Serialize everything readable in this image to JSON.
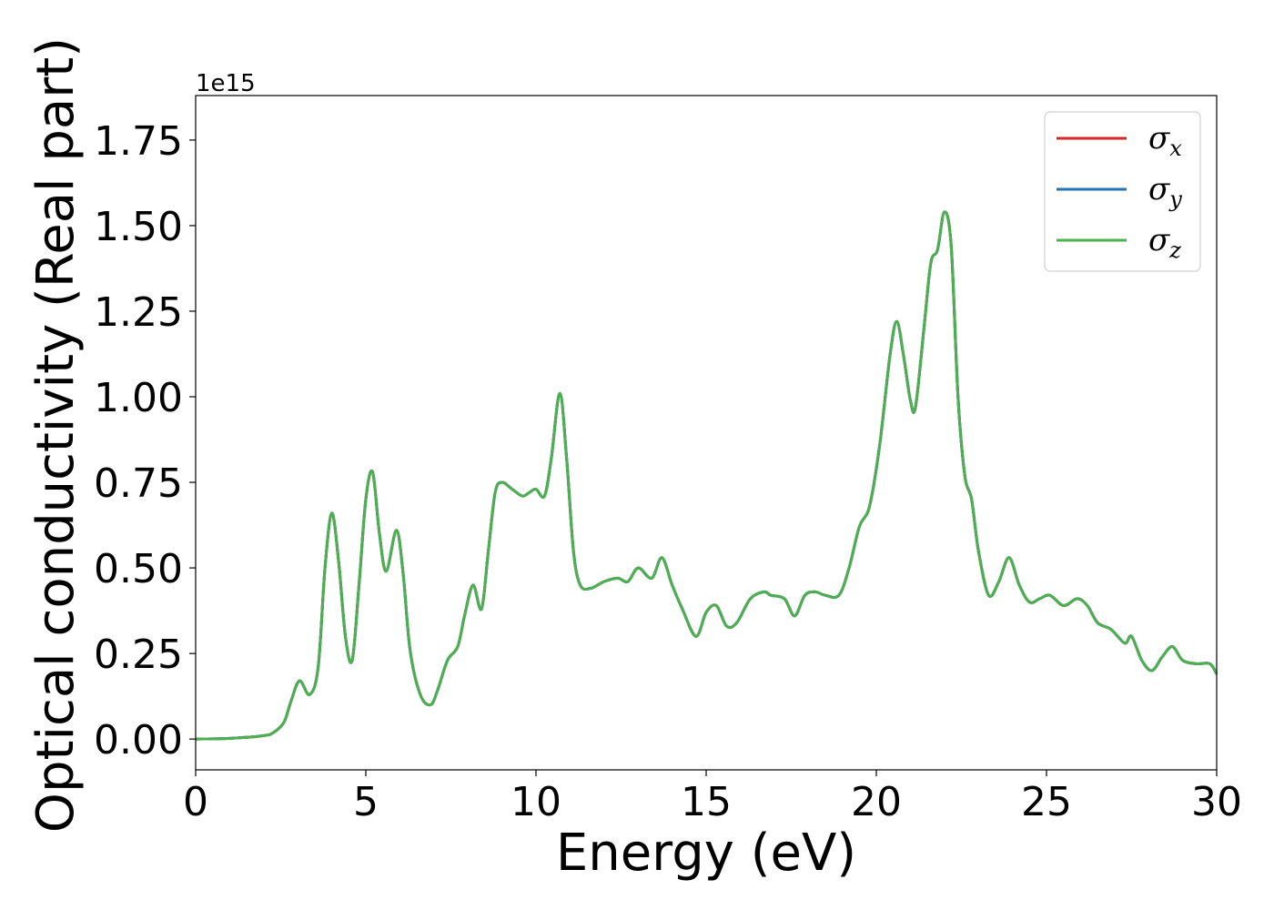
{
  "chart_data": {
    "type": "line",
    "title": "",
    "xlabel": "Energy (eV)",
    "ylabel": "Optical conductivity (Real part)",
    "y_offset_label": "1e15",
    "xlim": [
      0,
      30
    ],
    "ylim": [
      -0.09,
      1.88
    ],
    "x_ticks": [
      0,
      5,
      10,
      15,
      20,
      25,
      30
    ],
    "x_tick_labels": [
      "0",
      "5",
      "10",
      "15",
      "20",
      "25",
      "30"
    ],
    "y_ticks": [
      0.0,
      0.25,
      0.5,
      0.75,
      1.0,
      1.25,
      1.5,
      1.75
    ],
    "y_tick_labels": [
      "0.00",
      "0.25",
      "0.50",
      "0.75",
      "1.00",
      "1.25",
      "1.50",
      "1.75"
    ],
    "grid": false,
    "legend_position": "top-right",
    "legend": [
      {
        "symbol": "σ",
        "subscript": "x",
        "color": "#d62728"
      },
      {
        "symbol": "σ",
        "subscript": "y",
        "color": "#1f77b4"
      },
      {
        "symbol": "σ",
        "subscript": "z",
        "color": "#4caf50"
      }
    ],
    "series": [
      {
        "name": "σx",
        "color": "#d62728",
        "x": [
          0,
          1,
          2,
          2.3,
          2.6,
          2.8,
          3.05,
          3.35,
          3.6,
          3.8,
          4.0,
          4.2,
          4.4,
          4.6,
          4.8,
          5.0,
          5.2,
          5.4,
          5.6,
          5.9,
          6.1,
          6.3,
          6.6,
          6.9,
          7.1,
          7.4,
          7.7,
          7.9,
          8.15,
          8.4,
          8.6,
          8.8,
          9.0,
          9.3,
          9.6,
          9.8,
          10.0,
          10.25,
          10.45,
          10.7,
          10.9,
          11.1,
          11.3,
          11.6,
          12.0,
          12.4,
          12.7,
          13.0,
          13.4,
          13.7,
          14.0,
          14.3,
          14.7,
          15.0,
          15.3,
          15.6,
          15.9,
          16.3,
          16.7,
          16.9,
          17.3,
          17.6,
          17.9,
          18.2,
          18.5,
          18.9,
          19.2,
          19.5,
          19.8,
          20.1,
          20.4,
          20.6,
          20.8,
          21.0,
          21.15,
          21.4,
          21.6,
          21.8,
          22.0,
          22.2,
          22.4,
          22.6,
          22.8,
          23.0,
          23.3,
          23.6,
          23.9,
          24.2,
          24.5,
          24.8,
          25.1,
          25.5,
          25.9,
          26.2,
          26.5,
          26.9,
          27.3,
          27.5,
          27.8,
          28.1,
          28.4,
          28.7,
          29.0,
          29.4,
          29.8,
          30.0
        ],
        "values": [
          0.0,
          0.002,
          0.01,
          0.02,
          0.05,
          0.11,
          0.17,
          0.13,
          0.21,
          0.5,
          0.66,
          0.52,
          0.3,
          0.23,
          0.45,
          0.7,
          0.78,
          0.6,
          0.49,
          0.61,
          0.48,
          0.26,
          0.13,
          0.1,
          0.14,
          0.23,
          0.27,
          0.36,
          0.45,
          0.38,
          0.55,
          0.72,
          0.75,
          0.73,
          0.71,
          0.72,
          0.73,
          0.71,
          0.82,
          1.01,
          0.82,
          0.55,
          0.45,
          0.44,
          0.46,
          0.47,
          0.46,
          0.5,
          0.47,
          0.53,
          0.45,
          0.38,
          0.3,
          0.37,
          0.39,
          0.33,
          0.34,
          0.41,
          0.43,
          0.42,
          0.41,
          0.36,
          0.42,
          0.43,
          0.42,
          0.42,
          0.5,
          0.62,
          0.68,
          0.86,
          1.12,
          1.22,
          1.12,
          0.99,
          0.97,
          1.2,
          1.39,
          1.43,
          1.54,
          1.44,
          1.0,
          0.77,
          0.7,
          0.55,
          0.42,
          0.46,
          0.53,
          0.45,
          0.4,
          0.41,
          0.42,
          0.39,
          0.41,
          0.39,
          0.34,
          0.32,
          0.28,
          0.3,
          0.23,
          0.2,
          0.24,
          0.27,
          0.23,
          0.22,
          0.22,
          0.19
        ]
      },
      {
        "name": "σy",
        "color": "#1f77b4",
        "x": [
          0,
          1,
          2,
          2.3,
          2.6,
          2.8,
          3.05,
          3.35,
          3.6,
          3.8,
          4.0,
          4.2,
          4.4,
          4.6,
          4.8,
          5.0,
          5.2,
          5.4,
          5.6,
          5.9,
          6.1,
          6.3,
          6.6,
          6.9,
          7.1,
          7.4,
          7.7,
          7.9,
          8.15,
          8.4,
          8.6,
          8.8,
          9.0,
          9.3,
          9.6,
          9.8,
          10.0,
          10.25,
          10.45,
          10.7,
          10.9,
          11.1,
          11.3,
          11.6,
          12.0,
          12.4,
          12.7,
          13.0,
          13.4,
          13.7,
          14.0,
          14.3,
          14.7,
          15.0,
          15.3,
          15.6,
          15.9,
          16.3,
          16.7,
          16.9,
          17.3,
          17.6,
          17.9,
          18.2,
          18.5,
          18.9,
          19.2,
          19.5,
          19.8,
          20.1,
          20.4,
          20.6,
          20.8,
          21.0,
          21.15,
          21.4,
          21.6,
          21.8,
          22.0,
          22.2,
          22.4,
          22.6,
          22.8,
          23.0,
          23.3,
          23.6,
          23.9,
          24.2,
          24.5,
          24.8,
          25.1,
          25.5,
          25.9,
          26.2,
          26.5,
          26.9,
          27.3,
          27.5,
          27.8,
          28.1,
          28.4,
          28.7,
          29.0,
          29.4,
          29.8,
          30.0
        ],
        "values": [
          0.0,
          0.002,
          0.01,
          0.02,
          0.05,
          0.11,
          0.17,
          0.13,
          0.21,
          0.5,
          0.66,
          0.52,
          0.3,
          0.23,
          0.45,
          0.7,
          0.78,
          0.6,
          0.49,
          0.61,
          0.48,
          0.26,
          0.13,
          0.1,
          0.14,
          0.23,
          0.27,
          0.36,
          0.45,
          0.38,
          0.55,
          0.72,
          0.75,
          0.73,
          0.71,
          0.72,
          0.73,
          0.71,
          0.82,
          1.01,
          0.82,
          0.55,
          0.45,
          0.44,
          0.46,
          0.47,
          0.46,
          0.5,
          0.47,
          0.53,
          0.45,
          0.38,
          0.3,
          0.37,
          0.39,
          0.33,
          0.34,
          0.41,
          0.43,
          0.42,
          0.41,
          0.36,
          0.42,
          0.43,
          0.42,
          0.42,
          0.5,
          0.62,
          0.68,
          0.86,
          1.12,
          1.22,
          1.12,
          0.99,
          0.97,
          1.2,
          1.39,
          1.43,
          1.54,
          1.44,
          1.0,
          0.77,
          0.7,
          0.55,
          0.42,
          0.46,
          0.53,
          0.45,
          0.4,
          0.41,
          0.42,
          0.39,
          0.41,
          0.39,
          0.34,
          0.32,
          0.28,
          0.3,
          0.23,
          0.2,
          0.24,
          0.27,
          0.23,
          0.22,
          0.22,
          0.19
        ]
      },
      {
        "name": "σz",
        "color": "#4caf50",
        "x": [
          0,
          1,
          2,
          2.3,
          2.6,
          2.8,
          3.05,
          3.35,
          3.6,
          3.8,
          4.0,
          4.2,
          4.4,
          4.6,
          4.8,
          5.0,
          5.2,
          5.4,
          5.6,
          5.9,
          6.1,
          6.3,
          6.6,
          6.9,
          7.1,
          7.4,
          7.7,
          7.9,
          8.15,
          8.4,
          8.6,
          8.8,
          9.0,
          9.3,
          9.6,
          9.8,
          10.0,
          10.25,
          10.45,
          10.7,
          10.9,
          11.1,
          11.3,
          11.6,
          12.0,
          12.4,
          12.7,
          13.0,
          13.4,
          13.7,
          14.0,
          14.3,
          14.7,
          15.0,
          15.3,
          15.6,
          15.9,
          16.3,
          16.7,
          16.9,
          17.3,
          17.6,
          17.9,
          18.2,
          18.5,
          18.9,
          19.2,
          19.5,
          19.8,
          20.1,
          20.4,
          20.6,
          20.8,
          21.0,
          21.15,
          21.4,
          21.6,
          21.8,
          22.0,
          22.2,
          22.4,
          22.6,
          22.8,
          23.0,
          23.3,
          23.6,
          23.9,
          24.2,
          24.5,
          24.8,
          25.1,
          25.5,
          25.9,
          26.2,
          26.5,
          26.9,
          27.3,
          27.5,
          27.8,
          28.1,
          28.4,
          28.7,
          29.0,
          29.4,
          29.8,
          30.0
        ],
        "values": [
          0.0,
          0.002,
          0.01,
          0.02,
          0.05,
          0.11,
          0.17,
          0.13,
          0.21,
          0.5,
          0.66,
          0.52,
          0.3,
          0.23,
          0.45,
          0.7,
          0.78,
          0.6,
          0.49,
          0.61,
          0.48,
          0.26,
          0.13,
          0.1,
          0.14,
          0.23,
          0.27,
          0.36,
          0.45,
          0.38,
          0.55,
          0.72,
          0.75,
          0.73,
          0.71,
          0.72,
          0.73,
          0.71,
          0.82,
          1.01,
          0.82,
          0.55,
          0.45,
          0.44,
          0.46,
          0.47,
          0.46,
          0.5,
          0.47,
          0.53,
          0.45,
          0.38,
          0.3,
          0.37,
          0.39,
          0.33,
          0.34,
          0.41,
          0.43,
          0.42,
          0.41,
          0.36,
          0.42,
          0.43,
          0.42,
          0.42,
          0.5,
          0.62,
          0.68,
          0.86,
          1.12,
          1.22,
          1.12,
          0.99,
          0.97,
          1.2,
          1.39,
          1.43,
          1.54,
          1.44,
          1.0,
          0.77,
          0.7,
          0.55,
          0.42,
          0.46,
          0.53,
          0.45,
          0.4,
          0.41,
          0.42,
          0.39,
          0.41,
          0.39,
          0.34,
          0.32,
          0.28,
          0.3,
          0.23,
          0.2,
          0.24,
          0.27,
          0.23,
          0.22,
          0.22,
          0.19
        ]
      }
    ]
  }
}
